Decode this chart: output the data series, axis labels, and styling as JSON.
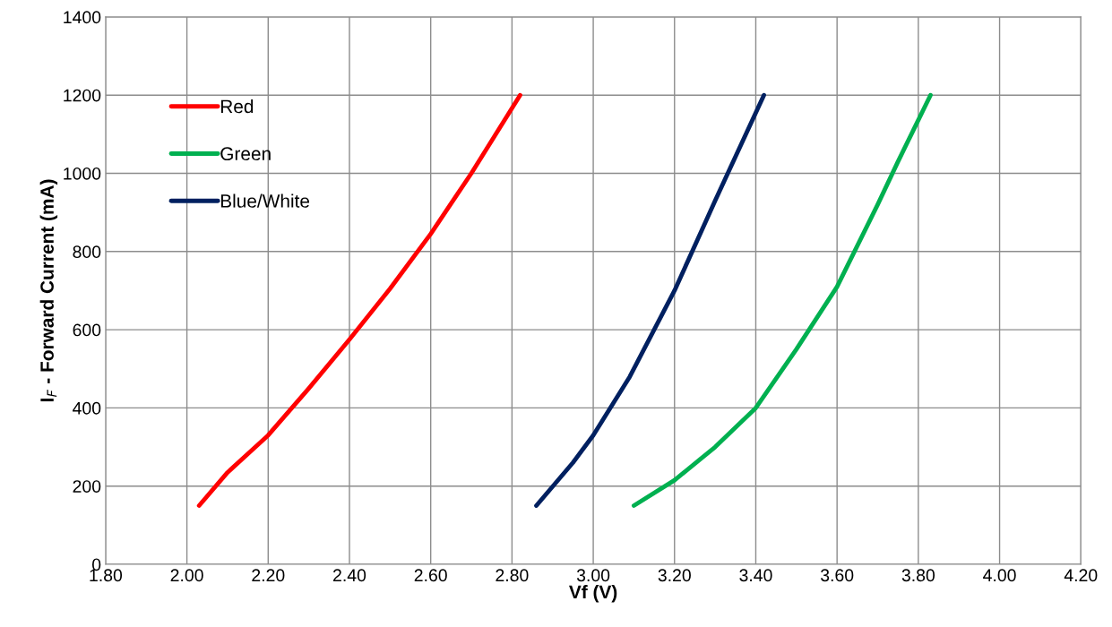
{
  "chart_data": {
    "type": "line",
    "xlabel": "Vf (V)",
    "ylabel": "I$_{F}$ - Forward Current (mA)",
    "xlim": [
      1.8,
      4.2
    ],
    "ylim": [
      0,
      1400
    ],
    "xticks": [
      {
        "value": 1.8,
        "label": "1.80"
      },
      {
        "value": 2.0,
        "label": "2.00"
      },
      {
        "value": 2.2,
        "label": "2.20"
      },
      {
        "value": 2.4,
        "label": "2.40"
      },
      {
        "value": 2.6,
        "label": "2.60"
      },
      {
        "value": 2.8,
        "label": "2.80"
      },
      {
        "value": 3.0,
        "label": "3.00"
      },
      {
        "value": 3.2,
        "label": "3.20"
      },
      {
        "value": 3.4,
        "label": "3.40"
      },
      {
        "value": 3.6,
        "label": "3.60"
      },
      {
        "value": 3.8,
        "label": "3.80"
      },
      {
        "value": 4.0,
        "label": "4.00"
      },
      {
        "value": 4.2,
        "label": "4.20"
      }
    ],
    "yticks": [
      0,
      200,
      400,
      600,
      800,
      1000,
      1200,
      1400
    ],
    "grid": true,
    "legend": "top left",
    "marker": "none",
    "line_style": "solid",
    "series": [
      {
        "name": "Red",
        "color": "#ff0000",
        "x": [
          2.03,
          2.1,
          2.2,
          2.3,
          2.4,
          2.5,
          2.6,
          2.7,
          2.82
        ],
        "values": [
          150,
          235,
          330,
          450,
          575,
          705,
          845,
          1000,
          1200
        ]
      },
      {
        "name": "Green",
        "color": "#00b050",
        "x": [
          3.1,
          3.2,
          3.3,
          3.4,
          3.5,
          3.6,
          3.7,
          3.75,
          3.83
        ],
        "values": [
          150,
          215,
          300,
          400,
          550,
          710,
          920,
          1030,
          1200
        ]
      },
      {
        "name": "Blue/White",
        "color": "#002060",
        "x": [
          2.86,
          2.95,
          3.0,
          3.09,
          3.2,
          3.3,
          3.42
        ],
        "values": [
          150,
          260,
          330,
          480,
          700,
          930,
          1200
        ]
      }
    ]
  }
}
